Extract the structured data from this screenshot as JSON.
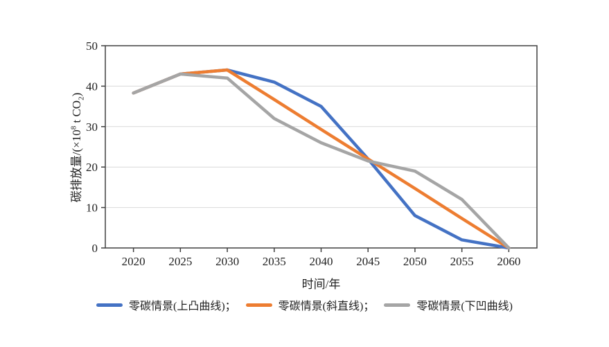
{
  "figure": {
    "background": "#ffffff",
    "plot_border_color": "#3f3f3f",
    "gridline_color": "#d9d9d9",
    "tick_color": "#3f3f3f",
    "text_color": "#1f1f1f"
  },
  "chart_data": {
    "type": "line",
    "title": "",
    "xlabel": "时间/年",
    "ylabel": "碳排放量/(×10⁸ t CO₂)",
    "ylabel_parts": {
      "prefix": "碳排放量/(×10",
      "sup": "8",
      "mid": " t CO",
      "sub": "2",
      "suffix": ")"
    },
    "x": [
      2020,
      2025,
      2030,
      2035,
      2040,
      2045,
      2050,
      2055,
      2060
    ],
    "xlim": [
      2017,
      2063
    ],
    "ylim": [
      0,
      50
    ],
    "yticks": [
      0,
      10,
      20,
      30,
      40,
      50
    ],
    "grid": "horizontal",
    "legend_position": "bottom",
    "series": [
      {
        "name": "零碳情景(上凸曲线)",
        "legend_label": "零碳情景(上凸曲线)；",
        "color": "#4472C4",
        "values": [
          38.3,
          43,
          44,
          41,
          35,
          22,
          8,
          2,
          0
        ]
      },
      {
        "name": "零碳情景(斜直线)",
        "legend_label": "零碳情景(斜直线)；",
        "color": "#ED7D31",
        "values": [
          38.3,
          43,
          44,
          36.7,
          29.3,
          22,
          14.7,
          7.3,
          0
        ]
      },
      {
        "name": "零碳情景(下凹曲线)",
        "legend_label": "零碳情景(下凹曲线)",
        "color": "#A5A5A5",
        "values": [
          38.3,
          43,
          42,
          32,
          26,
          21.5,
          19,
          12,
          0
        ]
      }
    ]
  }
}
